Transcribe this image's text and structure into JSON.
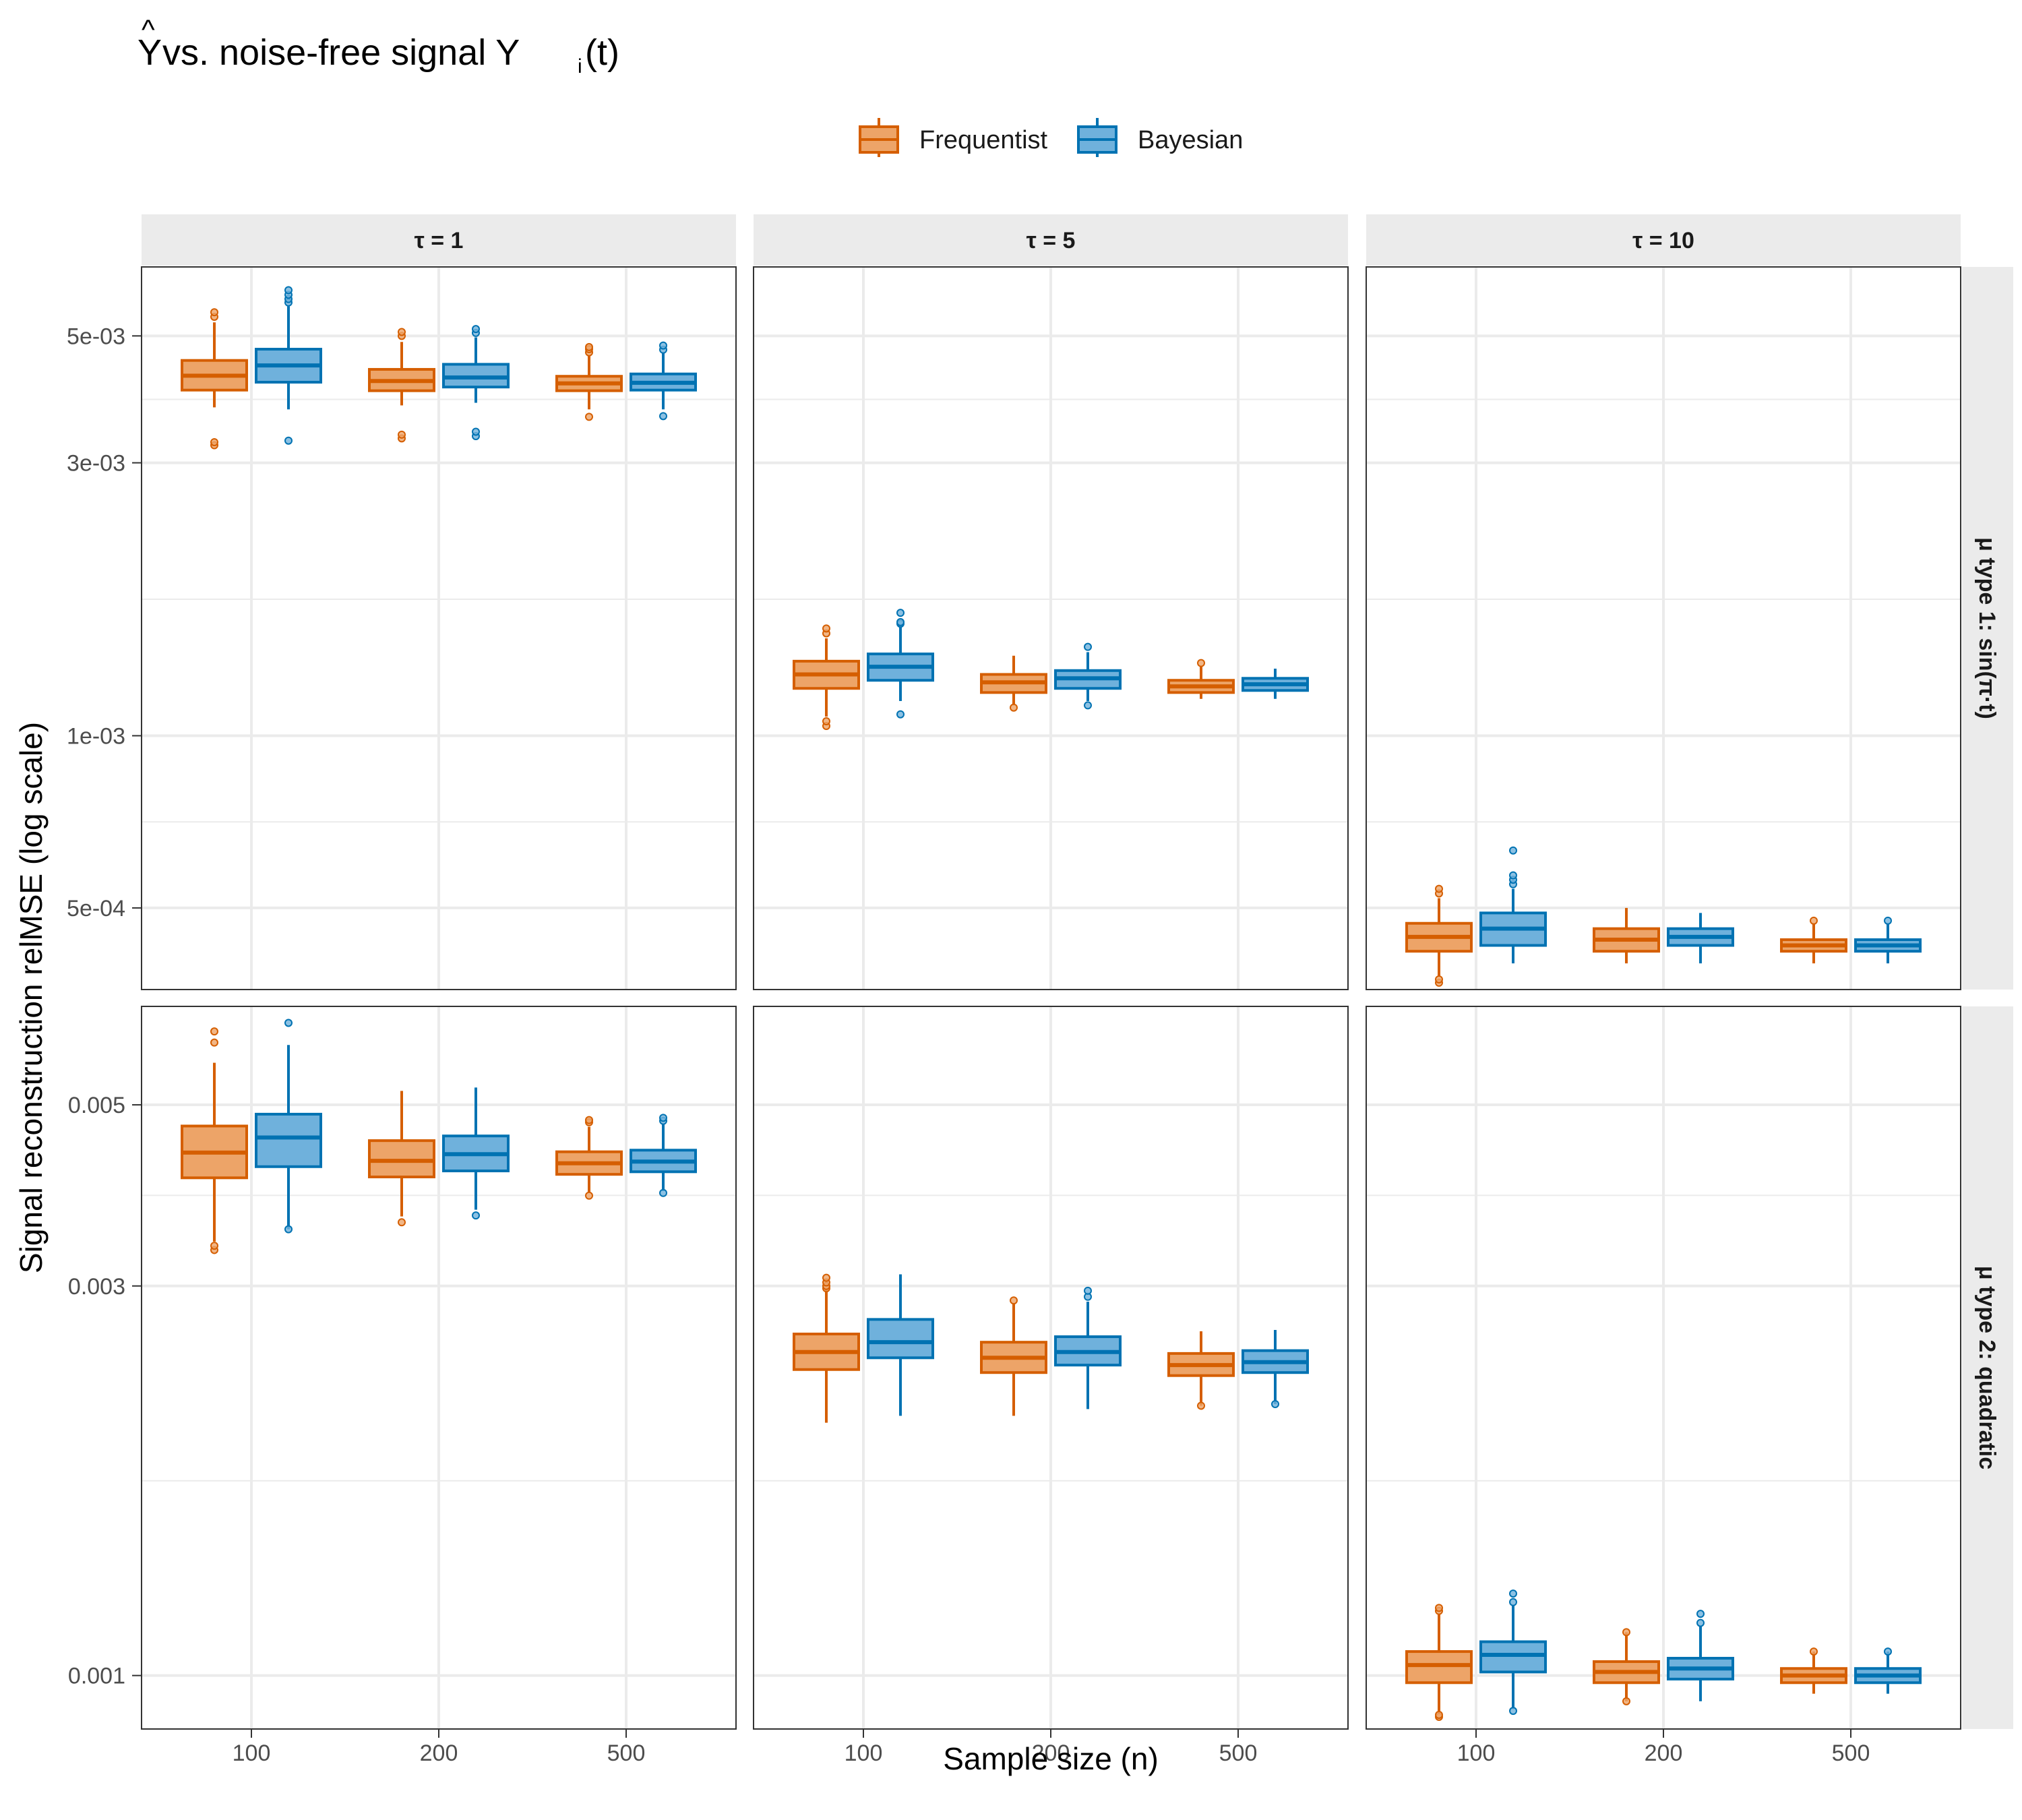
{
  "title": {
    "yhat_glyph": "Y",
    "hat": "^",
    "text": " vs. noise-free signal Y",
    "subscript": "i",
    "suffix": "(t)"
  },
  "legend": {
    "items": [
      {
        "name": "Frequentist",
        "fill": "#EDA468",
        "stroke": "#D55E00"
      },
      {
        "name": "Bayesian",
        "fill": "#6FB1DC",
        "stroke": "#0072B2"
      }
    ]
  },
  "colors": {
    "frequentist_fill": "#EDA468",
    "frequentist_line": "#D55E00",
    "bayesian_fill": "#6FB1DC",
    "bayesian_line": "#0072B2",
    "strip_bg": "#EBEBEB",
    "grid": "#EBEBEB"
  },
  "chart_data": {
    "type": "box",
    "xlabel": "Sample size (n)",
    "ylabel": "Signal reconstruction relMSE  (log scale)",
    "y_scale": "log",
    "x_categories": [
      "100",
      "200",
      "500"
    ],
    "col_strips": [
      "τ = 1",
      "τ = 5",
      "τ = 10"
    ],
    "row_strips": [
      "μ type 1: sin(π·t)",
      "μ type 2: quadratic"
    ],
    "rows": [
      {
        "ylim": [
          0.00036,
          0.0066
        ],
        "y_ticks": [
          {
            "value": 0.005,
            "label": "5e-03"
          },
          {
            "value": 0.003,
            "label": "3e-03"
          },
          {
            "value": 0.001,
            "label": "1e-03"
          },
          {
            "value": 0.0005,
            "label": "5e-04"
          }
        ],
        "panels": [
          {
            "boxes": [
              {
                "n": "100",
                "series": "Frequentist",
                "lw": 0.00375,
                "q1": 0.00402,
                "med": 0.00426,
                "q3": 0.00453,
                "hw": 0.00528,
                "outliers": [
                  0.00322,
                  0.00326,
                  0.0054,
                  0.0055
                ]
              },
              {
                "n": "100",
                "series": "Bayesian",
                "lw": 0.00372,
                "q1": 0.00415,
                "med": 0.00444,
                "q3": 0.00474,
                "hw": 0.00563,
                "outliers": [
                  0.00328,
                  0.00572,
                  0.0058,
                  0.0059,
                  0.00601
                ]
              },
              {
                "n": "200",
                "series": "Frequentist",
                "lw": 0.00378,
                "q1": 0.00401,
                "med": 0.00417,
                "q3": 0.00437,
                "hw": 0.00488,
                "outliers": [
                  0.00331,
                  0.00336,
                  0.005,
                  0.00508
                ]
              },
              {
                "n": "200",
                "series": "Bayesian",
                "lw": 0.00382,
                "q1": 0.00407,
                "med": 0.00423,
                "q3": 0.00446,
                "hw": 0.00497,
                "outliers": [
                  0.00334,
                  0.0034,
                  0.00506,
                  0.00514
                ]
              },
              {
                "n": "500",
                "series": "Frequentist",
                "lw": 0.00372,
                "q1": 0.00401,
                "med": 0.00413,
                "q3": 0.00425,
                "hw": 0.00462,
                "outliers": [
                  0.00361,
                  0.00468,
                  0.00474,
                  0.00478
                ]
              },
              {
                "n": "500",
                "series": "Bayesian",
                "lw": 0.00372,
                "q1": 0.00402,
                "med": 0.00414,
                "q3": 0.00429,
                "hw": 0.00468,
                "outliers": [
                  0.00362,
                  0.00473,
                  0.00481
                ]
              }
            ]
          },
          {
            "boxes": [
              {
                "n": "100",
                "series": "Frequentist",
                "lw": 0.00108,
                "q1": 0.00121,
                "med": 0.00128,
                "q3": 0.00135,
                "hw": 0.00148,
                "outliers": [
                  0.00104,
                  0.00106,
                  0.00151,
                  0.00154
                ]
              },
              {
                "n": "100",
                "series": "Bayesian",
                "lw": 0.00115,
                "q1": 0.00125,
                "med": 0.00132,
                "q3": 0.00139,
                "hw": 0.00155,
                "outliers": [
                  0.00109,
                  0.00157,
                  0.00158,
                  0.00164
                ]
              },
              {
                "n": "200",
                "series": "Frequentist",
                "lw": 0.00113,
                "q1": 0.00119,
                "med": 0.00124,
                "q3": 0.00128,
                "hw": 0.00138,
                "outliers": [
                  0.00112
                ]
              },
              {
                "n": "200",
                "series": "Bayesian",
                "lw": 0.00115,
                "q1": 0.00121,
                "med": 0.00126,
                "q3": 0.0013,
                "hw": 0.0014,
                "outliers": [
                  0.00113,
                  0.00143
                ]
              },
              {
                "n": "500",
                "series": "Frequentist",
                "lw": 0.00116,
                "q1": 0.00119,
                "med": 0.00122,
                "q3": 0.00125,
                "hw": 0.00132,
                "outliers": [
                  0.00134
                ]
              },
              {
                "n": "500",
                "series": "Bayesian",
                "lw": 0.00116,
                "q1": 0.0012,
                "med": 0.00123,
                "q3": 0.00126,
                "hw": 0.00131,
                "outliers": []
              }
            ]
          },
          {
            "boxes": [
              {
                "n": "100",
                "series": "Frequentist",
                "lw": 0.00038,
                "q1": 0.00042,
                "med": 0.000445,
                "q3": 0.00047,
                "hw": 0.00052,
                "outliers": [
                  0.00037,
                  0.000375,
                  0.00053,
                  0.00054
                ]
              },
              {
                "n": "100",
                "series": "Bayesian",
                "lw": 0.0004,
                "q1": 0.00043,
                "med": 0.00046,
                "q3": 0.00049,
                "hw": 0.00054,
                "outliers": [
                  0.00055,
                  0.00056,
                  0.00057,
                  0.00063
                ]
              },
              {
                "n": "200",
                "series": "Frequentist",
                "lw": 0.0004,
                "q1": 0.00042,
                "med": 0.00044,
                "q3": 0.00046,
                "hw": 0.0005,
                "outliers": []
              },
              {
                "n": "200",
                "series": "Bayesian",
                "lw": 0.0004,
                "q1": 0.00043,
                "med": 0.000445,
                "q3": 0.00046,
                "hw": 0.00049,
                "outliers": []
              },
              {
                "n": "500",
                "series": "Frequentist",
                "lw": 0.0004,
                "q1": 0.00042,
                "med": 0.00043,
                "q3": 0.00044,
                "hw": 0.00047,
                "outliers": [
                  0.000475
                ]
              },
              {
                "n": "500",
                "series": "Bayesian",
                "lw": 0.0004,
                "q1": 0.00042,
                "med": 0.00043,
                "q3": 0.00044,
                "hw": 0.00047,
                "outliers": [
                  0.000475
                ]
              }
            ]
          }
        ]
      },
      {
        "ylim": [
          0.00086,
          0.0066
        ],
        "y_ticks": [
          {
            "value": 0.005,
            "label": "0.005"
          },
          {
            "value": 0.003,
            "label": "0.003"
          },
          {
            "value": 0.001,
            "label": "0.001"
          }
        ],
        "panels": [
          {
            "boxes": [
              {
                "n": "100",
                "series": "Frequentist",
                "lw": 0.0034,
                "q1": 0.00407,
                "med": 0.00437,
                "q3": 0.00471,
                "hw": 0.00563,
                "outliers": [
                  0.00332,
                  0.00336,
                  0.00596,
                  0.00615
                ]
              },
              {
                "n": "100",
                "series": "Bayesian",
                "lw": 0.00352,
                "q1": 0.0042,
                "med": 0.00456,
                "q3": 0.00487,
                "hw": 0.00592,
                "outliers": [
                  0.00352,
                  0.0063
                ]
              },
              {
                "n": "200",
                "series": "Frequentist",
                "lw": 0.00365,
                "q1": 0.00408,
                "med": 0.00427,
                "q3": 0.00452,
                "hw": 0.0052,
                "outliers": [
                  0.00359
                ]
              },
              {
                "n": "200",
                "series": "Bayesian",
                "lw": 0.00372,
                "q1": 0.00415,
                "med": 0.00435,
                "q3": 0.00458,
                "hw": 0.00525,
                "outliers": [
                  0.00366
                ]
              },
              {
                "n": "500",
                "series": "Frequentist",
                "lw": 0.0039,
                "q1": 0.00411,
                "med": 0.00424,
                "q3": 0.00438,
                "hw": 0.0047,
                "outliers": [
                  0.00387,
                  0.00476,
                  0.00479
                ]
              },
              {
                "n": "500",
                "series": "Bayesian",
                "lw": 0.00392,
                "q1": 0.00414,
                "med": 0.00426,
                "q3": 0.0044,
                "hw": 0.00474,
                "outliers": [
                  0.0039,
                  0.00478,
                  0.00482
                ]
              }
            ]
          },
          {
            "boxes": [
              {
                "n": "100",
                "series": "Frequentist",
                "lw": 0.00204,
                "q1": 0.00237,
                "med": 0.00249,
                "q3": 0.00262,
                "hw": 0.00298,
                "outliers": [
                  0.00298,
                  0.003,
                  0.00303,
                  0.00307
                ]
              },
              {
                "n": "100",
                "series": "Bayesian",
                "lw": 0.00208,
                "q1": 0.00245,
                "med": 0.00256,
                "q3": 0.00273,
                "hw": 0.0031,
                "outliers": []
              },
              {
                "n": "200",
                "series": "Frequentist",
                "lw": 0.00208,
                "q1": 0.00235,
                "med": 0.00245,
                "q3": 0.00256,
                "hw": 0.00286,
                "outliers": [
                  0.00288
                ]
              },
              {
                "n": "200",
                "series": "Bayesian",
                "lw": 0.00212,
                "q1": 0.0024,
                "med": 0.00249,
                "q3": 0.0026,
                "hw": 0.00287,
                "outliers": [
                  0.00291,
                  0.00296
                ]
              },
              {
                "n": "500",
                "series": "Frequentist",
                "lw": 0.00214,
                "q1": 0.00233,
                "med": 0.0024,
                "q3": 0.00248,
                "hw": 0.00264,
                "outliers": [
                  0.00214
                ]
              },
              {
                "n": "500",
                "series": "Bayesian",
                "lw": 0.00215,
                "q1": 0.00235,
                "med": 0.00242,
                "q3": 0.0025,
                "hw": 0.00265,
                "outliers": [
                  0.00215
                ]
              }
            ]
          },
          {
            "boxes": [
              {
                "n": "100",
                "series": "Frequentist",
                "lw": 0.0009,
                "q1": 0.00098,
                "med": 0.00103,
                "q3": 0.00107,
                "hw": 0.00119,
                "outliers": [
                  0.00089,
                  0.000895,
                  0.0012,
                  0.00121
                ]
              },
              {
                "n": "100",
                "series": "Bayesian",
                "lw": 0.00091,
                "q1": 0.00101,
                "med": 0.00106,
                "q3": 0.0011,
                "hw": 0.00122,
                "outliers": [
                  0.000905,
                  0.00123,
                  0.00126
                ]
              },
              {
                "n": "200",
                "series": "Frequentist",
                "lw": 0.00093,
                "q1": 0.00098,
                "med": 0.00101,
                "q3": 0.00104,
                "hw": 0.00113,
                "outliers": [
                  0.00093,
                  0.00113
                ]
              },
              {
                "n": "200",
                "series": "Bayesian",
                "lw": 0.00093,
                "q1": 0.00099,
                "med": 0.00102,
                "q3": 0.00105,
                "hw": 0.00115,
                "outliers": [
                  0.00116,
                  0.00119
                ]
              },
              {
                "n": "500",
                "series": "Frequentist",
                "lw": 0.00095,
                "q1": 0.00098,
                "med": 0.001,
                "q3": 0.00102,
                "hw": 0.00107,
                "outliers": [
                  0.00107
                ]
              },
              {
                "n": "500",
                "series": "Bayesian",
                "lw": 0.00095,
                "q1": 0.00098,
                "med": 0.001,
                "q3": 0.00102,
                "hw": 0.00107,
                "outliers": [
                  0.00107
                ]
              }
            ]
          }
        ]
      }
    ]
  }
}
